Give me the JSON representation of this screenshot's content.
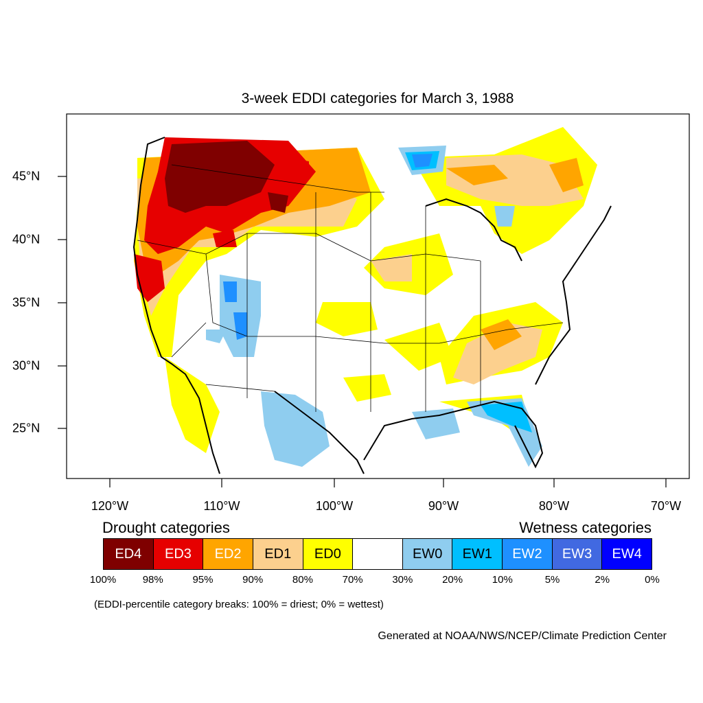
{
  "title": "3-week EDDI categories for March 3, 1988",
  "map": {
    "lon_labels": [
      "120°W",
      "110°W",
      "100°W",
      "90°W",
      "80°W",
      "70°W"
    ],
    "lat_labels": [
      "45°N",
      "40°N",
      "35°N",
      "30°N",
      "25°N"
    ],
    "colors": {
      "ED4": "#7f0000",
      "ED3": "#e60000",
      "ED2": "#ffa500",
      "ED1": "#fcd08e",
      "ED0": "#ffff00",
      "neutral": "#ffffff",
      "EW0": "#8fcdef",
      "EW1": "#00bfff",
      "EW2": "#1e90ff",
      "EW3": "#4169e1",
      "EW4": "#0000ff"
    }
  },
  "legend": {
    "drought_heading": "Drought categories",
    "wetness_heading": "Wetness categories",
    "boxes": [
      {
        "label": "ED4",
        "color": "#7f0000",
        "text_color": "#ffffff"
      },
      {
        "label": "ED3",
        "color": "#e60000",
        "text_color": "#ffffff"
      },
      {
        "label": "ED2",
        "color": "#ffa500",
        "text_color": "#ffffff"
      },
      {
        "label": "ED1",
        "color": "#fcd08e",
        "text_color": "#000000"
      },
      {
        "label": "ED0",
        "color": "#ffff00",
        "text_color": "#000000"
      },
      {
        "label": "",
        "color": "#ffffff",
        "text_color": "#000000"
      },
      {
        "label": "EW0",
        "color": "#8fcdef",
        "text_color": "#000000"
      },
      {
        "label": "EW1",
        "color": "#00bfff",
        "text_color": "#000000"
      },
      {
        "label": "EW2",
        "color": "#1e90ff",
        "text_color": "#ffffff"
      },
      {
        "label": "EW3",
        "color": "#4169e1",
        "text_color": "#ffffff"
      },
      {
        "label": "EW4",
        "color": "#0000ff",
        "text_color": "#ffffff"
      }
    ],
    "percent_labels": [
      "100%",
      "98%",
      "95%",
      "90%",
      "80%",
      "70%",
      "30%",
      "20%",
      "10%",
      "5%",
      "2%",
      "0%"
    ]
  },
  "breaks_note": "(EDDI-percentile category breaks: 100% = driest; 0% = wettest)",
  "credit": "Generated at NOAA/NWS/NCEP/Climate Prediction Center"
}
